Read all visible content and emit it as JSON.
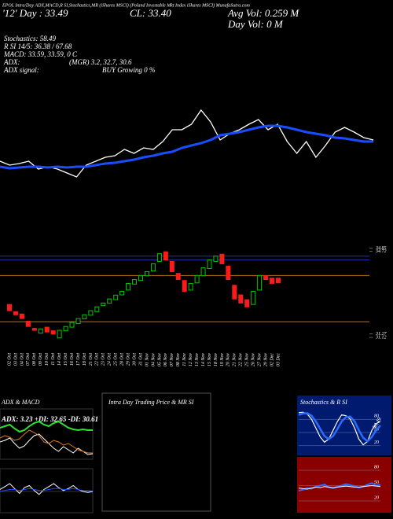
{
  "header": {
    "banner": "EPOL Intra/Day ADX,MACD,R SI,Stochastics,MR (iShares MSCI) (Poland Investable Mkt Index iShares MSCI) MunafaSutra.com",
    "day_price": "'12' Day : 33.49",
    "close": "CL: 33.40",
    "avg_vol": "Avg Vol: 0.259 M",
    "day_vol": "Day Vol: 0  M",
    "stochastics": "Stochastics: 58.49",
    "rsi": "R SI 14/5: 36.38 / 67.68",
    "macd": "MACD: 33.59, 33.59, 0 C",
    "adx_label": "ADX:",
    "adx_values": "(MGR) 3.2, 32.7, 30.6",
    "signal_label": "ADX  signal:",
    "signal_value": "BUY Growing 0 %"
  },
  "chart_data": [
    {
      "type": "line",
      "ylim": [
        31,
        35
      ],
      "series": [
        {
          "color": "#ffffff",
          "values": [
            32.0,
            31.8,
            31.88,
            32.0,
            31.6,
            31.72,
            31.6,
            31.4,
            31.2,
            31.8,
            32.0,
            32.2,
            32.28,
            32.6,
            32.4,
            32.68,
            32.6,
            33.0,
            33.6,
            33.6,
            33.88,
            34.6,
            34.0,
            33.08,
            33.4,
            33.6,
            33.88,
            34.12,
            33.6,
            33.88,
            33.0,
            32.4,
            33.0,
            32.2,
            32.8,
            33.48,
            33.72,
            33.48,
            33.2,
            33.08
          ]
        },
        {
          "color": "#1a4dff",
          "values": [
            31.72,
            31.64,
            31.68,
            31.72,
            31.72,
            31.68,
            31.72,
            31.68,
            31.72,
            31.72,
            31.8,
            31.88,
            31.92,
            32.0,
            32.08,
            32.2,
            32.28,
            32.4,
            32.48,
            32.68,
            32.8,
            32.92,
            33.08,
            33.32,
            33.4,
            33.48,
            33.6,
            33.72,
            33.8,
            33.8,
            33.72,
            33.6,
            33.48,
            33.4,
            33.32,
            33.2,
            33.16,
            33.08,
            33.0,
            33.0
          ]
        }
      ]
    },
    {
      "type": "candlestick",
      "categories": [
        "02 Oct",
        "03 Oct",
        "04 Oct",
        "07 Oct",
        "08 Oct",
        "09 Oct",
        "10 Oct",
        "11 Oct",
        "14 Oct",
        "15 Oct",
        "16 Oct",
        "17 Oct",
        "18 Oct",
        "21 Oct",
        "22 Oct",
        "23 Oct",
        "24 Oct",
        "25 Oct",
        "28 Oct",
        "29 Oct",
        "30 Oct",
        "31 Oct",
        "01 Nov",
        "04 Nov",
        "05 Nov",
        "06 Nov",
        "07 Nov",
        "08 Nov",
        "11 Nov",
        "12 Nov",
        "13 Nov",
        "14 Nov",
        "15 Nov",
        "18 Nov",
        "19 Nov",
        "20 Nov",
        "21 Nov",
        "22 Nov",
        "25 Nov",
        "26 Nov",
        "27 Nov",
        "29 Nov",
        "02 Dec",
        "03 Dec"
      ],
      "open": [
        32.5,
        32.2,
        32.1,
        31.8,
        31.5,
        31.3,
        31.55,
        31.4,
        31.1,
        31.4,
        31.55,
        31.7,
        31.9,
        32.05,
        32.2,
        32.45,
        32.55,
        32.7,
        32.9,
        33.1,
        33.35,
        33.5,
        33.7,
        33.9,
        34.3,
        34.7,
        34.3,
        33.8,
        33.5,
        33.1,
        33.4,
        33.7,
        34.0,
        34.3,
        34.6,
        34.1,
        33.3,
        32.9,
        32.7,
        32.5,
        33.1,
        33.7,
        33.6,
        33.6
      ],
      "close": [
        32.24,
        32.07,
        31.91,
        31.58,
        31.42,
        31.48,
        31.35,
        31.26,
        31.42,
        31.58,
        31.75,
        31.91,
        32.07,
        32.24,
        32.4,
        32.56,
        32.73,
        32.89,
        33.05,
        33.38,
        33.54,
        33.71,
        33.87,
        34.2,
        34.62,
        34.36,
        33.87,
        33.54,
        33.05,
        33.38,
        33.71,
        34.03,
        34.36,
        34.52,
        34.2,
        33.54,
        32.73,
        32.56,
        32.4,
        33.05,
        33.71,
        33.54,
        33.38,
        33.4
      ],
      "up_color": "#00cc00",
      "down_color": "#ff1a1a",
      "ylim": [
        30.6,
        35.2
      ],
      "yticks": [
        34.85,
        34.72,
        31.27,
        31.12
      ],
      "levels": [
        {
          "value": 34.52,
          "color": "#2233aa"
        },
        {
          "value": 34.36,
          "color": "#2233aa"
        },
        {
          "value": 33.71,
          "color": "#b8741a"
        },
        {
          "value": 31.78,
          "color": "#b8741a"
        }
      ]
    },
    {
      "type": "line",
      "title": "ADX  & MACD",
      "subtitle": "ADX: 3.23 +DI: 32.65 -DI: 30.61",
      "ylim": [
        0,
        60
      ],
      "series": [
        {
          "color": "#33dd33",
          "values": [
            38,
            40,
            42,
            37,
            33,
            35,
            40,
            44,
            46,
            42,
            40,
            44,
            46,
            42,
            38,
            36,
            35,
            36,
            35,
            35
          ]
        },
        {
          "color": "#ffffff",
          "values": [
            20,
            22,
            25,
            18,
            12,
            15,
            22,
            28,
            30,
            24,
            18,
            12,
            8,
            14,
            10,
            6,
            12,
            8,
            4,
            5
          ]
        },
        {
          "color": "#e07820",
          "values": [
            25,
            28,
            26,
            22,
            24,
            30,
            35,
            32,
            28,
            20,
            18,
            22,
            20,
            16,
            18,
            14,
            10,
            8,
            6,
            6
          ]
        }
      ]
    },
    {
      "type": "line",
      "ylim": [
        -2,
        2
      ],
      "series": [
        {
          "color": "#ffffff",
          "values": [
            0.2,
            0.5,
            0.8,
            0.3,
            -0.2,
            0.4,
            0.6,
            0.1,
            -0.3,
            0.2,
            0.5,
            0.8,
            0.4,
            0.1,
            0.3,
            0.6,
            0.2,
            0,
            -0.1,
            0
          ]
        },
        {
          "color": "#1a4dff",
          "values": [
            0,
            0.1,
            0.2,
            0.2,
            0.1,
            0.2,
            0.3,
            0.2,
            0.1,
            0.1,
            0.2,
            0.3,
            0.3,
            0.2,
            0.2,
            0.3,
            0.2,
            0.1,
            0.1,
            0.05
          ]
        }
      ]
    },
    {
      "type": "empty",
      "title": "Intra Day Trading Price  & MR          SI"
    },
    {
      "type": "line",
      "title": "Stochastics  & R          SI",
      "value": 58.49,
      "ylim": [
        0,
        100
      ],
      "yticks": [
        80,
        50,
        20
      ],
      "series": [
        {
          "color": "#ffffff",
          "values": [
            95,
            96,
            92,
            80,
            60,
            40,
            28,
            35,
            55,
            75,
            90,
            88,
            80,
            60,
            35,
            22,
            30,
            55,
            70,
            75
          ]
        },
        {
          "color": "#2a6bff",
          "values": [
            90,
            93,
            94,
            88,
            75,
            58,
            42,
            35,
            42,
            58,
            75,
            85,
            86,
            75,
            55,
            38,
            30,
            40,
            55,
            66
          ]
        }
      ]
    },
    {
      "type": "line",
      "ylim": [
        0,
        100
      ],
      "yticks": [
        80,
        50,
        20
      ],
      "series": [
        {
          "color": "#2a6bff",
          "values": [
            40,
            42,
            45,
            44,
            48,
            50,
            52,
            47,
            45,
            48,
            50,
            53,
            51,
            49,
            46,
            48,
            52,
            55,
            50,
            52
          ]
        },
        {
          "color": "#ffffff",
          "values": [
            45,
            44,
            43,
            45,
            47,
            46,
            48,
            47,
            46,
            47,
            48,
            49,
            48,
            47,
            47,
            48,
            49,
            50,
            49,
            48
          ]
        }
      ]
    }
  ]
}
